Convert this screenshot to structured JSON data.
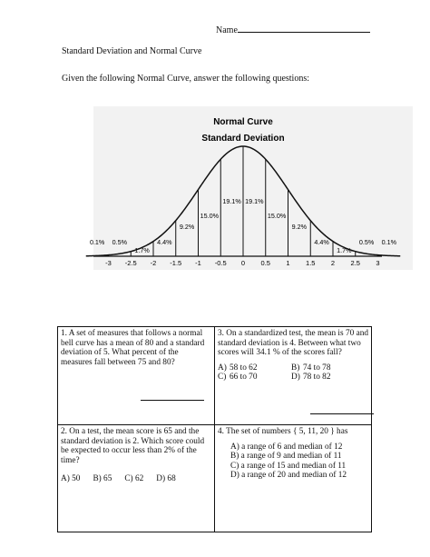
{
  "header": {
    "name_label": "Name"
  },
  "title": "Standard Deviation and Normal Curve",
  "instructions": "Given the following Normal Curve, answer the following questions:",
  "figure": {
    "title": "Normal Curve",
    "subtitle": "Standard Deviation"
  },
  "chart_data": {
    "type": "area",
    "title": "Normal Curve",
    "subtitle": "Standard Deviation",
    "x_ticks": [
      "-3",
      "-2.5",
      "-2",
      "-1.5",
      "-1",
      "-0.5",
      "0",
      "0.5",
      "1",
      "1.5",
      "2",
      "2.5",
      "3"
    ],
    "x_tick_values": [
      -3,
      -2.5,
      -2,
      -1.5,
      -1,
      -0.5,
      0,
      0.5,
      1,
      1.5,
      2,
      2.5,
      3
    ],
    "xlim": [
      -3.5,
      3.5
    ],
    "region_labels": [
      {
        "text": "0.1%",
        "x": -3.25
      },
      {
        "text": "0.5%",
        "x": -2.75
      },
      {
        "text": "1.7%",
        "x": -2.25
      },
      {
        "text": "4.4%",
        "x": -1.75
      },
      {
        "text": "9.2%",
        "x": -1.25
      },
      {
        "text": "15.0%",
        "x": -0.75
      },
      {
        "text": "19.1%",
        "x": -0.25
      },
      {
        "text": "19.1%",
        "x": 0.25
      },
      {
        "text": "15.0%",
        "x": 0.75
      },
      {
        "text": "9.2%",
        "x": 1.25
      },
      {
        "text": "4.4%",
        "x": 1.75
      },
      {
        "text": "1.7%",
        "x": 2.25
      },
      {
        "text": "0.5%",
        "x": 2.75
      },
      {
        "text": "0.1%",
        "x": 3.25
      }
    ]
  },
  "questions": {
    "q1": {
      "text": "1.  A set of measures that follows a normal bell curve has a mean of 80 and a standard deviation of 5.  What percent of the measures fall between 75 and 80?"
    },
    "q3": {
      "text": "3.  On a standardized test, the mean is 70 and standard deviation is 4.  Between what two scores will 34.1 % of the scores fall?",
      "options": [
        {
          "letter": "A)",
          "value": "58 to 62"
        },
        {
          "letter": "B)",
          "value": "74 to 78"
        },
        {
          "letter": "C)",
          "value": "66 to 70"
        },
        {
          "letter": "D)",
          "value": "78 to 82"
        }
      ]
    },
    "q2": {
      "text": "2.  On a test, the mean score is 65 and the standard deviation is 2.  Which score could be expected to occur less than 2% of the time?",
      "options": [
        "A)  50",
        "B)  65",
        "C)  62",
        "D)  68"
      ]
    },
    "q4": {
      "text": "4.   The set of numbers { 5,  11,  20 } has",
      "options": [
        "A)  a range of 6 and median of 12",
        "B)  a range of 9 and median of 11",
        "C)  a range of 15 and median of 11",
        "D)  a range of 20 and median of 12"
      ]
    }
  }
}
